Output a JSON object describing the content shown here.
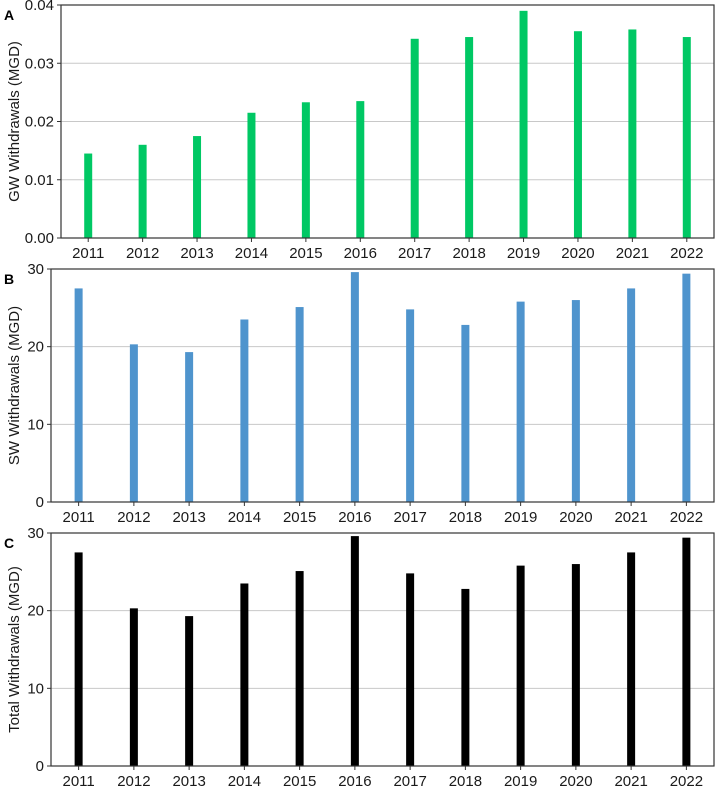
{
  "chart_data": [
    {
      "type": "bar",
      "panel_label": "A",
      "title": "",
      "xlabel": "",
      "ylabel": "GW Withdrawals (MGD)",
      "categories": [
        "2011",
        "2012",
        "2013",
        "2014",
        "2015",
        "2016",
        "2017",
        "2018",
        "2019",
        "2020",
        "2021",
        "2022"
      ],
      "values": [
        0.0145,
        0.016,
        0.0175,
        0.0215,
        0.0233,
        0.0235,
        0.0342,
        0.0345,
        0.039,
        0.0355,
        0.0358,
        0.0345
      ],
      "ylim": [
        0,
        0.04
      ],
      "yticks": [
        0,
        0.01,
        0.02,
        0.03,
        0.04
      ],
      "ytick_labels": [
        "0.00",
        "0.01",
        "0.02",
        "0.03",
        "0.04"
      ],
      "color": "#00c864",
      "grid": "horizontal"
    },
    {
      "type": "bar",
      "panel_label": "B",
      "title": "",
      "xlabel": "",
      "ylabel": "SW Withdrawals (MGD)",
      "categories": [
        "2011",
        "2012",
        "2013",
        "2014",
        "2015",
        "2016",
        "2017",
        "2018",
        "2019",
        "2020",
        "2021",
        "2022"
      ],
      "values": [
        27.5,
        20.3,
        19.3,
        23.5,
        25.1,
        29.6,
        24.8,
        22.8,
        25.8,
        26.0,
        27.5,
        29.4
      ],
      "ylim": [
        0,
        30
      ],
      "yticks": [
        0,
        10,
        20,
        30
      ],
      "ytick_labels": [
        "0",
        "10",
        "20",
        "30"
      ],
      "color": "#4f94cd",
      "grid": "horizontal"
    },
    {
      "type": "bar",
      "panel_label": "C",
      "title": "",
      "xlabel": "",
      "ylabel": "Total Withdrawals (MGD)",
      "categories": [
        "2011",
        "2012",
        "2013",
        "2014",
        "2015",
        "2016",
        "2017",
        "2018",
        "2019",
        "2020",
        "2021",
        "2022"
      ],
      "values": [
        27.5,
        20.3,
        19.3,
        23.5,
        25.1,
        29.6,
        24.8,
        22.8,
        25.8,
        26.0,
        27.5,
        29.4
      ],
      "ylim": [
        0,
        30
      ],
      "yticks": [
        0,
        10,
        20,
        30
      ],
      "ytick_labels": [
        "0",
        "10",
        "20",
        "30"
      ],
      "color": "#000000",
      "grid": "horizontal"
    }
  ]
}
